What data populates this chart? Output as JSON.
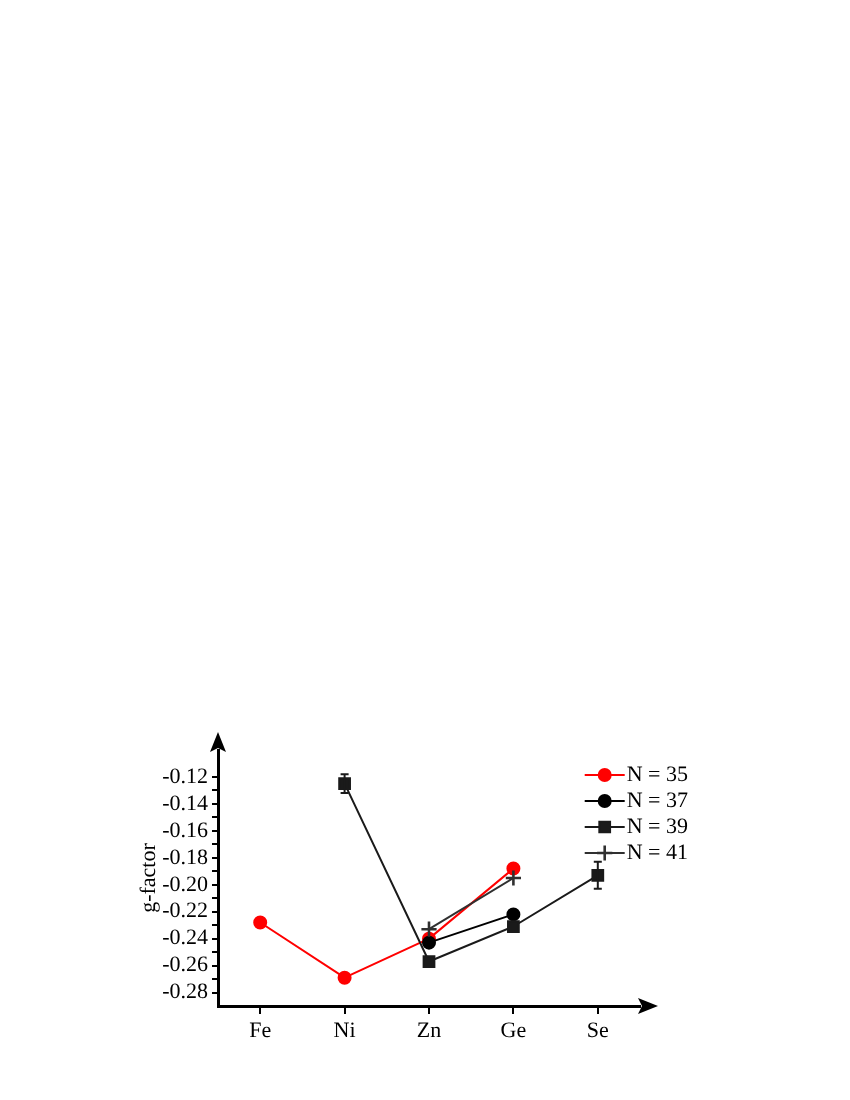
{
  "chart_data": {
    "type": "line",
    "ylabel": "g-factor",
    "categories": [
      "Fe",
      "Ni",
      "Zn",
      "Ge",
      "Se"
    ],
    "series": [
      {
        "name": "N = 35",
        "color": "#ff0000",
        "marker": "circle",
        "values": [
          -0.228,
          -0.269,
          -0.24,
          -0.188,
          null
        ]
      },
      {
        "name": "N = 37",
        "color": "#000000",
        "marker": "circle",
        "values": [
          null,
          null,
          -0.243,
          -0.222,
          null
        ]
      },
      {
        "name": "N = 39",
        "color": "#1a1a1a",
        "marker": "square",
        "values": [
          null,
          -0.125,
          -0.257,
          -0.231,
          -0.193
        ],
        "errors": [
          null,
          0.007,
          null,
          null,
          0.01
        ]
      },
      {
        "name": "N = 41",
        "color": "#303030",
        "marker": "cross",
        "values": [
          null,
          null,
          -0.233,
          -0.195,
          null
        ]
      }
    ],
    "ylim": [
      -0.29,
      -0.1
    ],
    "yticks": [
      -0.28,
      {
        "value": -0.27,
        "label": null
      },
      -0.26,
      {
        "value": -0.25,
        "label": null
      },
      -0.24,
      {
        "value": -0.23,
        "label": null
      },
      -0.22,
      {
        "value": -0.21,
        "label": null
      },
      {
        "value": -0.2,
        "label": "-0.20"
      },
      {
        "value": -0.19,
        "label": null
      },
      -0.18,
      {
        "value": -0.17,
        "label": null
      },
      -0.16,
      {
        "value": -0.15,
        "label": null
      },
      -0.14,
      {
        "value": -0.13,
        "label": null
      },
      -0.12
    ],
    "legend": "top right"
  }
}
